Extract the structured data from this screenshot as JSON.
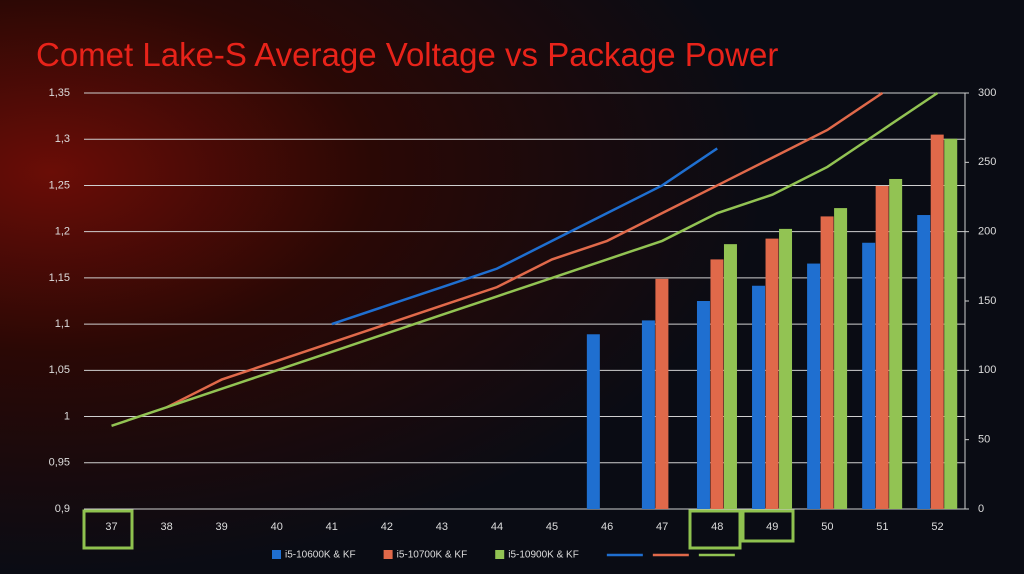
{
  "chart_data": {
    "type": "bar",
    "title": "Comet Lake-S Average Voltage vs Package Power",
    "categories": [
      37,
      38,
      39,
      40,
      41,
      42,
      43,
      44,
      45,
      46,
      47,
      48,
      49,
      50,
      51,
      52
    ],
    "ylim": [
      0.9,
      1.35
    ],
    "yticks": [
      {
        "value": 0.9,
        "label": "0,9"
      },
      {
        "value": 0.95,
        "label": "0,95"
      },
      1,
      {
        "value": 1.05,
        "label": "1,05"
      },
      {
        "value": 1.1,
        "label": "1,1"
      },
      {
        "value": 1.15,
        "label": "1,15"
      },
      {
        "value": 1.2,
        "label": "1,2"
      },
      {
        "value": 1.25,
        "label": "1,25"
      },
      {
        "value": 1.3,
        "label": "1,3"
      },
      {
        "value": 1.35,
        "label": "1,35"
      }
    ],
    "y2lim": [
      0,
      300
    ],
    "y2ticks": [
      0,
      50,
      100,
      150,
      200,
      250,
      300
    ],
    "grid": true,
    "series": [
      {
        "name": "i5-10600K & KF",
        "type": "bar",
        "axis": "y2",
        "color": "#1f6fd0",
        "values": [
          null,
          null,
          null,
          null,
          null,
          null,
          null,
          null,
          null,
          126,
          136,
          150,
          161,
          177,
          192,
          212
        ]
      },
      {
        "name": "i5-10700K & KF",
        "type": "bar",
        "axis": "y2",
        "color": "#e0694a",
        "values": [
          null,
          null,
          null,
          null,
          null,
          null,
          null,
          null,
          null,
          null,
          166,
          180,
          195,
          211,
          233,
          270
        ]
      },
      {
        "name": "i5-10900K & KF",
        "type": "bar",
        "axis": "y2",
        "color": "#92c353",
        "values": [
          null,
          null,
          null,
          null,
          null,
          null,
          null,
          null,
          null,
          null,
          null,
          191,
          202,
          217,
          238,
          267
        ]
      },
      {
        "type": "line",
        "axis": "y",
        "color": "#1f6fd0",
        "values": [
          null,
          null,
          null,
          null,
          1.1,
          1.12,
          1.14,
          1.16,
          1.19,
          1.22,
          1.25,
          1.29,
          null,
          null,
          null,
          null
        ]
      },
      {
        "type": "line",
        "axis": "y",
        "color": "#e0694a",
        "values": [
          null,
          1.01,
          1.04,
          1.06,
          1.08,
          1.1,
          1.12,
          1.14,
          1.17,
          1.19,
          1.22,
          1.25,
          1.28,
          1.31,
          1.35,
          null
        ]
      },
      {
        "type": "line",
        "axis": "y",
        "color": "#92c353",
        "values": [
          0.99,
          1.01,
          1.03,
          1.05,
          1.07,
          1.09,
          1.11,
          1.13,
          1.15,
          1.17,
          1.19,
          1.22,
          1.24,
          1.27,
          1.31,
          1.35
        ]
      }
    ]
  }
}
